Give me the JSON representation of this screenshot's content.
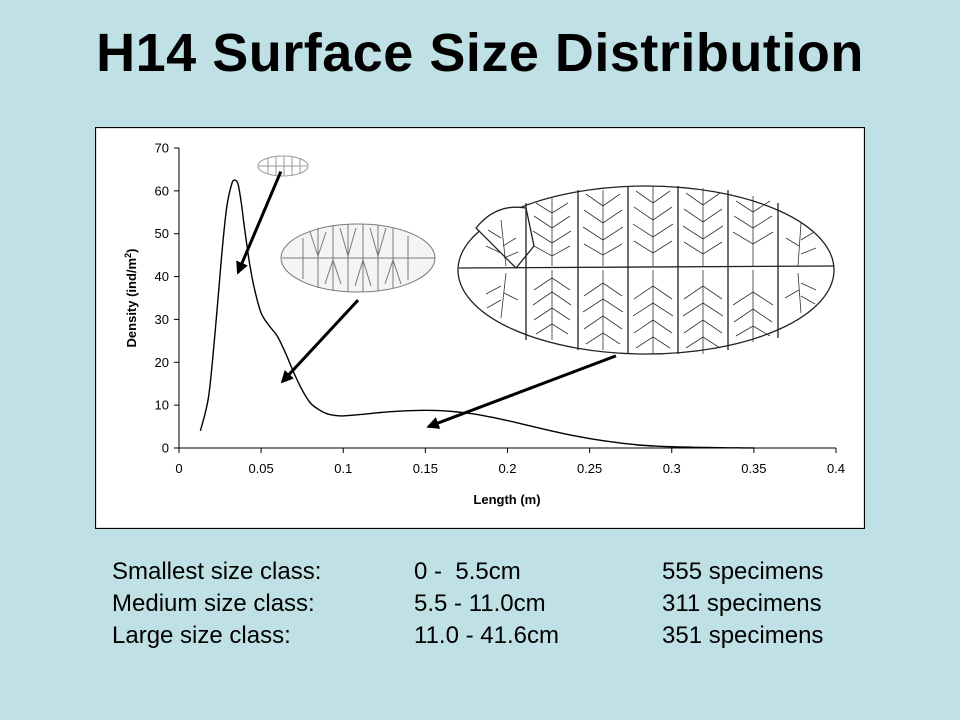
{
  "slide": {
    "title": "H14 Surface Size Distribution"
  },
  "chart_data": {
    "type": "line",
    "xlabel": "Length (m)",
    "ylabel_main": "Density (ind/m",
    "ylabel_sup": "2",
    "ylabel_end": ")",
    "xlim": [
      0,
      0.4
    ],
    "ylim": [
      0,
      70
    ],
    "xticks": [
      0,
      0.05,
      0.1,
      0.15,
      0.2,
      0.25,
      0.3,
      0.35,
      0.4
    ],
    "xtick_labels": [
      "0",
      "0.05",
      "0.1",
      "0.15",
      "0.2",
      "0.25",
      "0.3",
      "0.35",
      "0.4"
    ],
    "yticks": [
      0,
      10,
      20,
      30,
      40,
      50,
      60,
      70
    ],
    "ytick_labels": [
      "0",
      "10",
      "20",
      "30",
      "40",
      "50",
      "60",
      "70"
    ],
    "grid": false,
    "series": [
      {
        "color": "#000000",
        "x": [
          0.013,
          0.018,
          0.022,
          0.026,
          0.029,
          0.032,
          0.034,
          0.036,
          0.038,
          0.04,
          0.043,
          0.046,
          0.05,
          0.055,
          0.06,
          0.065,
          0.07,
          0.075,
          0.08,
          0.085,
          0.09,
          0.095,
          0.1,
          0.11,
          0.12,
          0.13,
          0.14,
          0.15,
          0.16,
          0.17,
          0.18,
          0.19,
          0.2,
          0.21,
          0.22,
          0.23,
          0.24,
          0.25,
          0.26,
          0.27,
          0.28,
          0.29,
          0.3,
          0.31,
          0.32,
          0.33,
          0.34,
          0.35
        ],
        "y": [
          4,
          12,
          27,
          45,
          56,
          61.5,
          62.5,
          61.5,
          57,
          51,
          43,
          37,
          31.5,
          28.5,
          26,
          22,
          17.5,
          13.5,
          10.5,
          9,
          8,
          7.6,
          7.5,
          7.8,
          8.2,
          8.5,
          8.7,
          8.8,
          8.7,
          8.4,
          7.9,
          7.2,
          6.4,
          5.5,
          4.6,
          3.7,
          2.9,
          2.2,
          1.6,
          1.1,
          0.7,
          0.45,
          0.3,
          0.2,
          0.12,
          0.07,
          0.04,
          0.02
        ]
      }
    ],
    "annotations": [
      {
        "type": "arrow",
        "from": [
          0.062,
          64.5
        ],
        "to": [
          0.036,
          41
        ]
      },
      {
        "type": "arrow",
        "from": [
          0.109,
          34.5
        ],
        "to": [
          0.063,
          15.5
        ]
      },
      {
        "type": "arrow",
        "from": [
          0.266,
          21.5
        ],
        "to": [
          0.152,
          5
        ]
      }
    ]
  },
  "summary": {
    "rows": [
      {
        "label": "Smallest size class:",
        "range": "0 -  5.5cm",
        "count": "555 specimens"
      },
      {
        "label": "Medium size class:",
        "range": "5.5 - 11.0cm",
        "count": "311 specimens"
      },
      {
        "label": "Large size class:",
        "range": "11.0 - 41.6cm",
        "count": "351 specimens"
      }
    ]
  }
}
